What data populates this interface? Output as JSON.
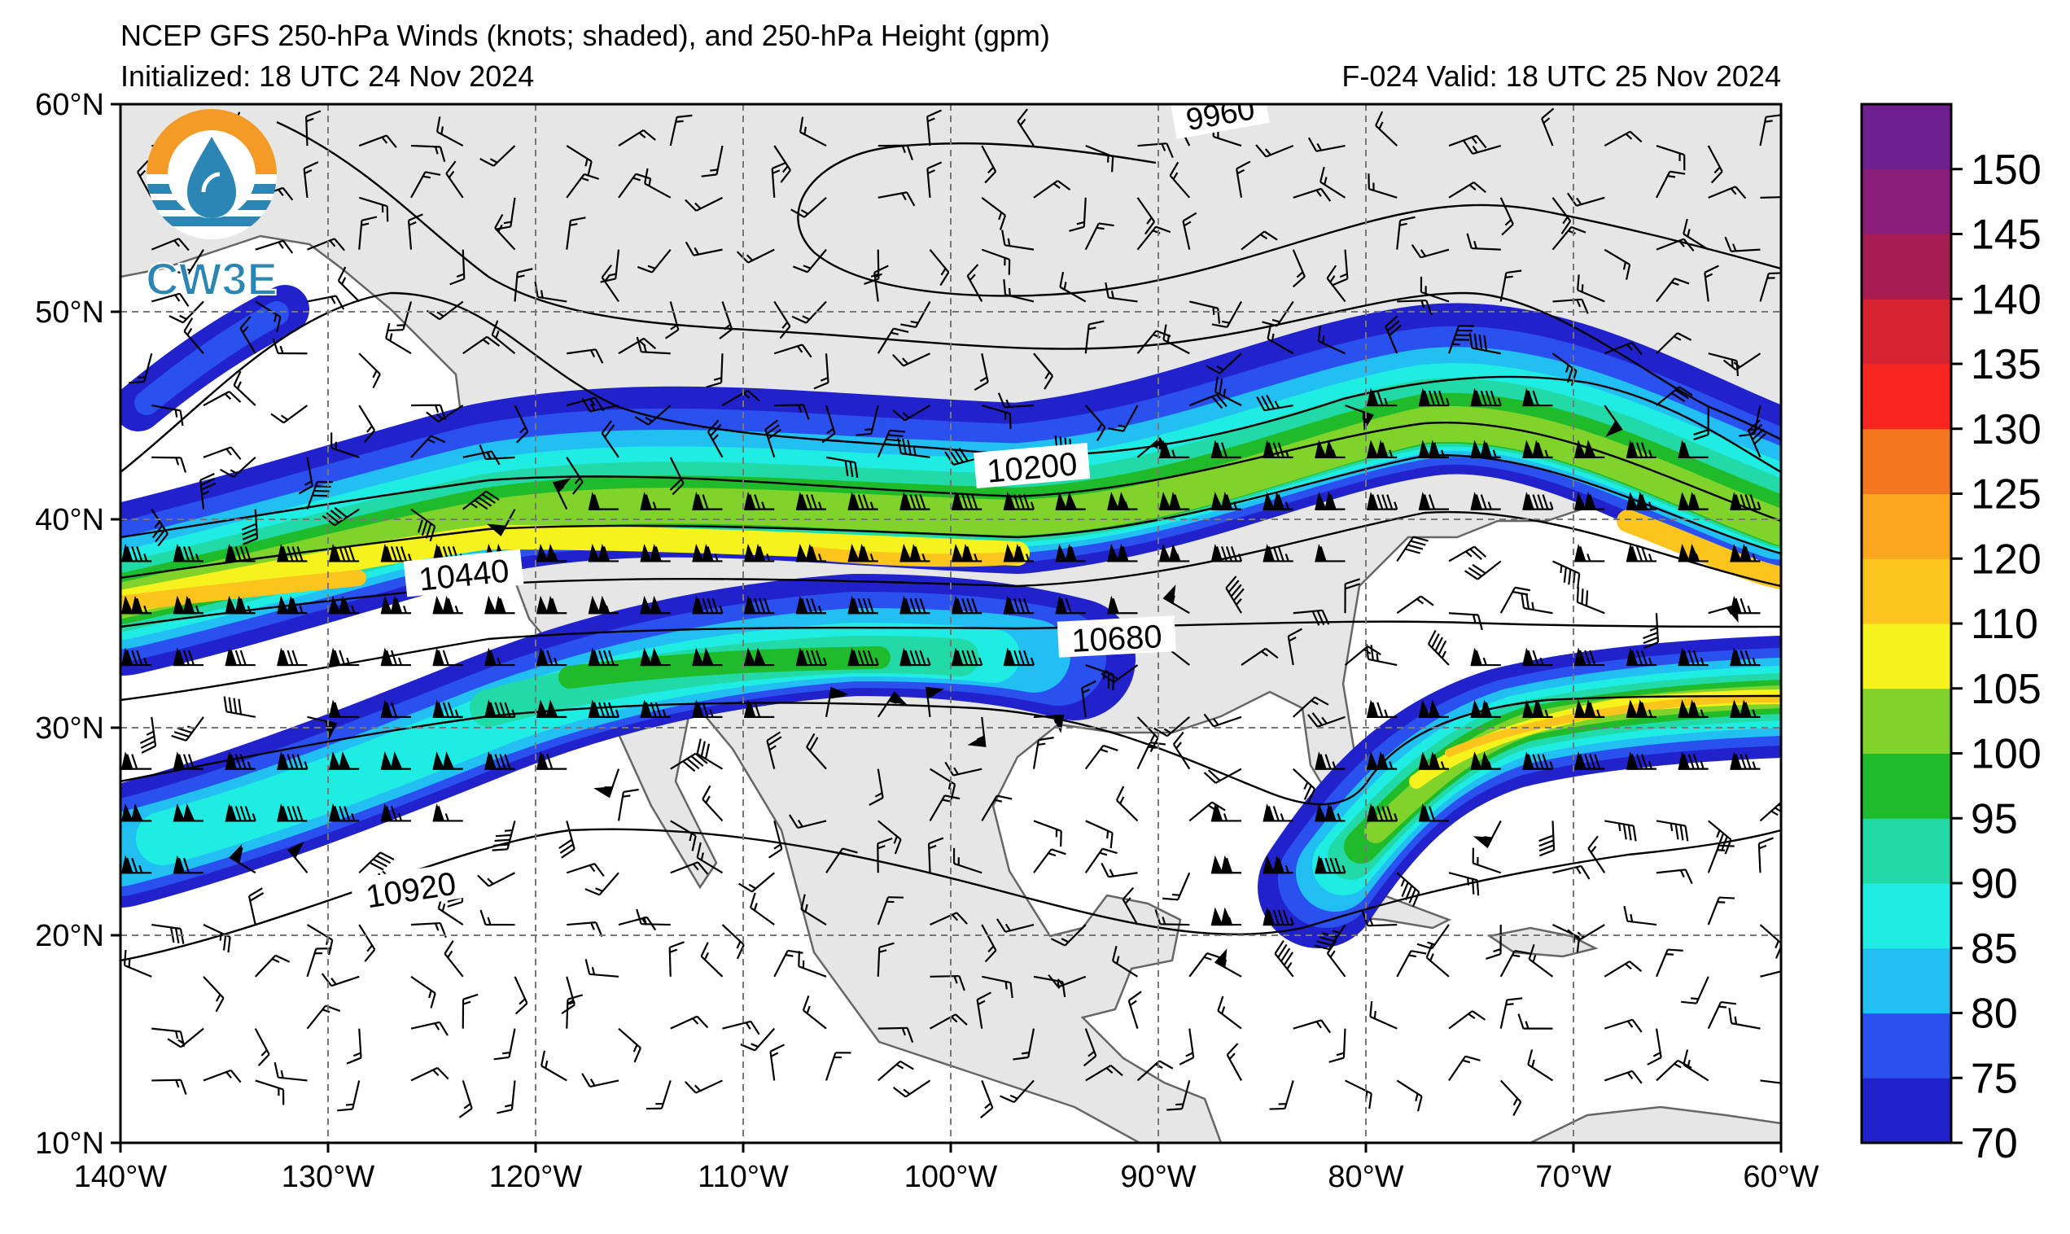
{
  "header": {
    "title": "NCEP GFS 250-hPa Winds (knots; shaded), and 250-hPa Height (gpm)",
    "initialized": "Initialized: 18 UTC 24 Nov 2024",
    "valid": "F-024  Valid: 18 UTC 25 Nov 2024"
  },
  "logo": {
    "text": "CW3E"
  },
  "axes": {
    "lon_ticks": [
      "140°W",
      "130°W",
      "120°W",
      "110°W",
      "100°W",
      "90°W",
      "80°W",
      "70°W",
      "60°W"
    ],
    "lat_ticks": [
      "60°N",
      "50°N",
      "40°N",
      "30°N",
      "20°N",
      "10°N"
    ],
    "lon_range": [
      -140,
      -60
    ],
    "lat_range": [
      10,
      60
    ],
    "grid": "dashed"
  },
  "contour_labels": [
    "9960",
    "10200",
    "10440",
    "10680",
    "10920"
  ],
  "colorbar": {
    "ticks": [
      "70",
      "75",
      "80",
      "85",
      "90",
      "95",
      "100",
      "105",
      "110",
      "120",
      "125",
      "130",
      "135",
      "140",
      "145",
      "150"
    ],
    "bins": [
      {
        "min": 70,
        "max": 75,
        "color": "#2222cc"
      },
      {
        "min": 75,
        "max": 80,
        "color": "#2a50f0"
      },
      {
        "min": 80,
        "max": 85,
        "color": "#22bff2"
      },
      {
        "min": 85,
        "max": 90,
        "color": "#1fede4"
      },
      {
        "min": 90,
        "max": 95,
        "color": "#22d9a8"
      },
      {
        "min": 95,
        "max": 100,
        "color": "#1fbb2b"
      },
      {
        "min": 100,
        "max": 105,
        "color": "#7fd32a"
      },
      {
        "min": 105,
        "max": 110,
        "color": "#f6f21d"
      },
      {
        "min": 110,
        "max": 120,
        "color": "#fbc51d"
      },
      {
        "min": 120,
        "max": 125,
        "color": "#f9a51e"
      },
      {
        "min": 125,
        "max": 130,
        "color": "#f47621"
      },
      {
        "min": 130,
        "max": 135,
        "color": "#f8261f"
      },
      {
        "min": 135,
        "max": 140,
        "color": "#d72232"
      },
      {
        "min": 140,
        "max": 145,
        "color": "#a61d54"
      },
      {
        "min": 145,
        "max": 150,
        "color": "#8a1e78"
      },
      {
        "min": 150,
        "max": 155,
        "color": "#6f2090"
      }
    ]
  },
  "colors": {
    "land": "#e6e6e6",
    "ocean": "#ffffff",
    "coast": "#666666",
    "logo_orange": "#f39a27",
    "logo_blue": "#2b86b3"
  },
  "chart_data": {
    "type": "heatmap",
    "title": "NCEP GFS 250-hPa Winds (knots; shaded), and 250-hPa Height (gpm)",
    "variable": "250-hPa wind speed (knots) with 250-hPa geopotential height contours (gpm)",
    "lon_range": [
      -140,
      -60
    ],
    "lat_range": [
      10,
      60
    ],
    "jets": [
      {
        "name": "",
        "axis_lon": [
          -140,
          -125,
          -115,
          -105,
          -95,
          -85,
          -75,
          -65,
          -60
        ],
        "axis_lat": [
          35.5,
          36,
          37,
          38,
          38.5,
          40,
          44,
          40,
          38
        ],
        "peak_kt": 115
      },
      {
        "name": "",
        "axis_lon": [
          -140,
          -125,
          -115,
          -105,
          -98
        ],
        "axis_lat": [
          25,
          28,
          32,
          34,
          34
        ],
        "peak_kt": 100
      },
      {
        "name": "",
        "axis_lon": [
          -84,
          -78,
          -72,
          -66,
          -60
        ],
        "axis_lat": [
          22,
          28,
          30,
          30.5,
          30.5
        ],
        "peak_kt": 115
      }
    ],
    "height_contours_gpm": [
      9960,
      10200,
      10440,
      10680,
      10920
    ]
  }
}
